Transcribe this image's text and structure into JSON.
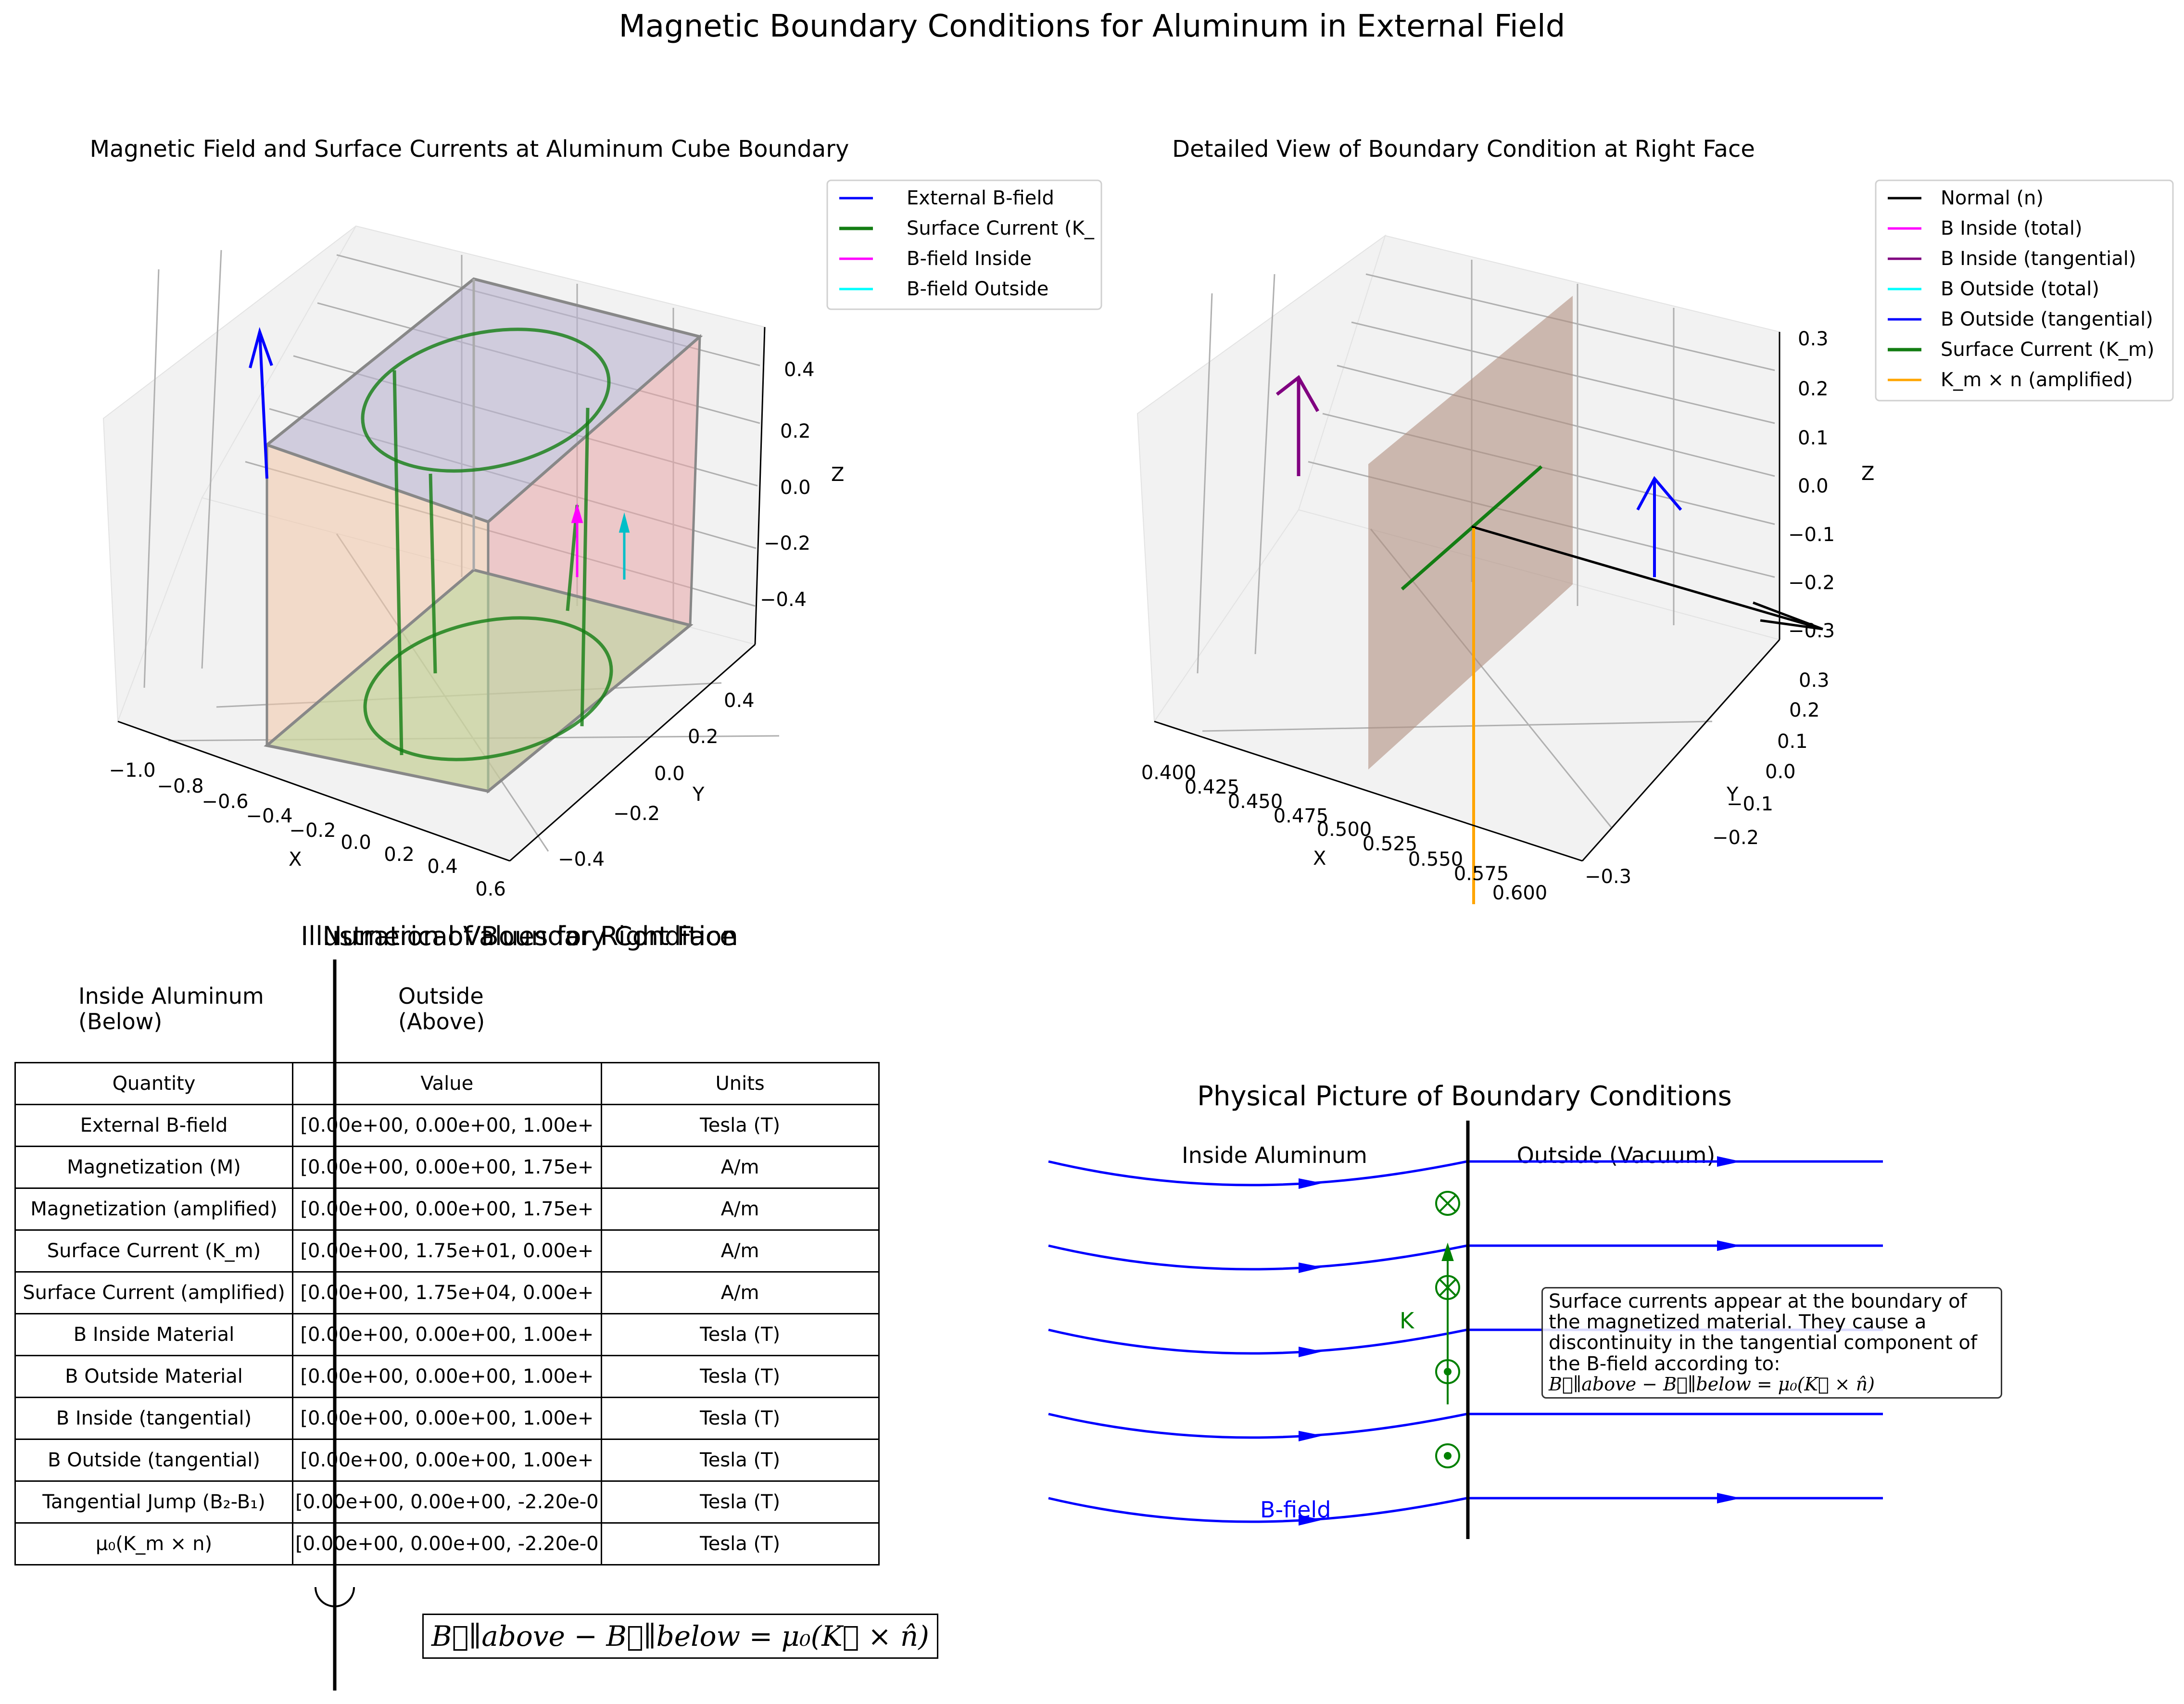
{
  "figure": {
    "title": "Magnetic Boundary Conditions for Aluminum in External Field"
  },
  "chart_data": [
    {
      "type": "3d-line",
      "title": "Magnetic Field and Surface Currents at Aluminum Cube Boundary",
      "xlabel": "X",
      "ylabel": "Y",
      "zlabel": "Z",
      "x_ticks": [
        "−1.0",
        "−0.8",
        "−0.6",
        "−0.4",
        "−0.2",
        "0.0",
        "0.2",
        "0.4",
        "0.6"
      ],
      "y_ticks": [
        "−0.4",
        "−0.2",
        "0.0",
        "0.2",
        "0.4"
      ],
      "z_ticks": [
        "0.4",
        "0.2",
        "0.0",
        "−0.2",
        "−0.4"
      ],
      "xlim": [
        -1.0,
        0.6
      ],
      "ylim": [
        -0.5,
        0.5
      ],
      "zlim": [
        -0.5,
        0.5
      ],
      "legend": [
        "External B-field",
        "Surface Current (K_",
        "B-field Inside",
        "B-field Outside"
      ],
      "legend_position": "upper-right-outside",
      "colors": {
        "external": "#0000ff",
        "current": "#137d13",
        "inside": "#ff00ff",
        "outside": "#00e5ee"
      }
    },
    {
      "type": "3d-line",
      "title": "Detailed View of Boundary Condition at Right Face",
      "xlabel": "X",
      "ylabel": "Y",
      "zlabel": "Z",
      "x_ticks": [
        "0.400",
        "0.425",
        "0.450",
        "0.475",
        "0.500",
        "0.525",
        "0.550",
        "0.575",
        "0.600"
      ],
      "y_ticks": [
        "0.3",
        "0.2",
        "0.1",
        "0.0",
        "−0.1",
        "−0.2",
        "−0.3"
      ],
      "z_ticks": [
        "0.3",
        "0.2",
        "0.1",
        "0.0",
        "−0.1",
        "−0.2",
        "−0.3"
      ],
      "xlim": [
        0.4,
        0.6
      ],
      "ylim": [
        -0.3,
        0.3
      ],
      "zlim": [
        -0.3,
        0.3
      ],
      "legend": [
        "Normal (n)",
        "B Inside (total)",
        "B Inside (tangential)",
        "B Outside (total)",
        "B Outside (tangential)",
        "Surface Current (K_m)",
        "K_m × n (amplified)"
      ],
      "legend_colors": [
        "#000000",
        "#ff00ff",
        "#800080",
        "#00ffff",
        "#0000ff",
        "#137d13",
        "#ffa500"
      ],
      "legend_position": "upper-right-outside"
    }
  ],
  "illustration": {
    "title_a": "Illustration of Boundary Condition",
    "title_b": "Numerical Values for Right Face",
    "inside_label": "Inside Aluminum\n(Below)",
    "outside_label": "Outside\n(Above)",
    "formula": "B⃗∥above − B⃗∥below = μ₀(K⃗ × n̂)"
  },
  "table": {
    "headers": [
      "Quantity",
      "Value",
      "Units"
    ],
    "rows": [
      [
        "External B-field",
        "[0.00e+00, 0.00e+00, 1.00e+",
        "Tesla (T)"
      ],
      [
        "Magnetization (M)",
        "[0.00e+00, 0.00e+00, 1.75e+",
        "A/m"
      ],
      [
        "Magnetization (amplified)",
        "[0.00e+00, 0.00e+00, 1.75e+",
        "A/m"
      ],
      [
        "Surface Current (K_m)",
        "[0.00e+00, 1.75e+01, 0.00e+",
        "A/m"
      ],
      [
        "Surface Current (amplified)",
        "[0.00e+00, 1.75e+04, 0.00e+",
        "A/m"
      ],
      [
        "B Inside Material",
        "[0.00e+00, 0.00e+00, 1.00e+",
        "Tesla (T)"
      ],
      [
        "B Outside Material",
        "[0.00e+00, 0.00e+00, 1.00e+",
        "Tesla (T)"
      ],
      [
        "B Inside (tangential)",
        "[0.00e+00, 0.00e+00, 1.00e+",
        "Tesla (T)"
      ],
      [
        "B Outside (tangential)",
        "[0.00e+00, 0.00e+00, 1.00e+",
        "Tesla (T)"
      ],
      [
        "Tangential Jump (B₂-B₁)",
        "[0.00e+00, 0.00e+00, -2.20e-0",
        "Tesla (T)"
      ],
      [
        "μ₀(K_m × n)",
        "[0.00e+00, 0.00e+00, -2.20e-0",
        "Tesla (T)"
      ]
    ]
  },
  "physical": {
    "title": "Physical Picture of Boundary Conditions",
    "inside_label": "Inside Aluminum",
    "outside_label": "Outside (Vacuum)",
    "k_label": "K",
    "b_label": "B-field",
    "note_text": "Surface currents appear at the boundary of the magnetized material. They cause a discontinuity in the tangential component of the B-field according to:",
    "note_formula": "B⃗∥above − B⃗∥below = μ₀(K⃗ × n̂)",
    "colors": {
      "field": "#0000ff",
      "current": "#008000"
    }
  }
}
